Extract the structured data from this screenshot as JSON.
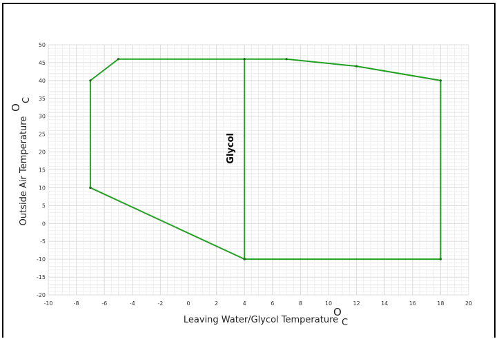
{
  "chart_data": {
    "type": "line",
    "xlabel": "Leaving Water/Glycol Temperature",
    "ylabel": "Outside Air Temperature",
    "unit_superscript": "O",
    "unit_subscript": "C",
    "xlim": [
      -10,
      20
    ],
    "ylim": [
      -20,
      50
    ],
    "xticks": [
      -10,
      -8,
      -6,
      -4,
      -2,
      0,
      2,
      4,
      6,
      8,
      10,
      12,
      14,
      16,
      18,
      20
    ],
    "yticks": [
      -20,
      -15,
      -10,
      -5,
      0,
      5,
      10,
      15,
      20,
      25,
      30,
      35,
      40,
      45,
      50
    ],
    "grid": true,
    "series_color": "#22a022",
    "series": [
      {
        "points": [
          [
            -7,
            10
          ],
          [
            -7,
            40
          ],
          [
            -5,
            46
          ],
          [
            4,
            46
          ],
          [
            7,
            46
          ],
          [
            12,
            44
          ],
          [
            18,
            40
          ],
          [
            18,
            -10
          ],
          [
            4,
            -10
          ],
          [
            -7,
            10
          ]
        ]
      },
      {
        "points": [
          [
            4,
            46
          ],
          [
            4,
            -10
          ]
        ]
      }
    ],
    "annotations": [
      {
        "text": "Glycol",
        "x": 3,
        "y": 21,
        "rotation": -90
      }
    ]
  }
}
